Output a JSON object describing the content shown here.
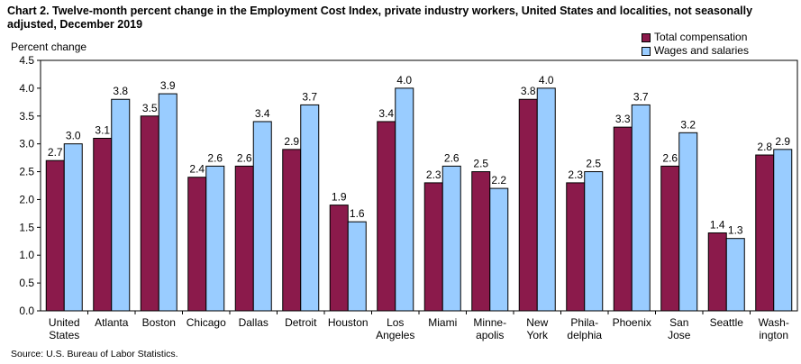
{
  "title": "Chart 2. Twelve-month percent change in the Employment Cost Index, private industry  workers, United States and localities, not seasonally adjusted, December 2019",
  "source": "Source: U.S. Bureau of Labor Statistics.",
  "colors": {
    "total": "#8B1A4B",
    "wages": "#99CCFF",
    "axis": "#000000"
  },
  "chart_data": {
    "type": "bar",
    "title": "Chart 2. Twelve-month percent change in the Employment Cost Index, private industry  workers, United States and localities, not seasonally adjusted, December 2019",
    "ylabel": "Percent change",
    "xlabel": "",
    "ylim": [
      0,
      4.5
    ],
    "yticks": [
      "0.0",
      "0.5",
      "1.0",
      "1.5",
      "2.0",
      "2.5",
      "3.0",
      "3.5",
      "4.0",
      "4.5"
    ],
    "legend_position": "top-right",
    "categories": [
      [
        "United",
        "States"
      ],
      [
        "Atlanta"
      ],
      [
        "Boston"
      ],
      [
        "Chicago"
      ],
      [
        "Dallas"
      ],
      [
        "Detroit"
      ],
      [
        "Houston"
      ],
      [
        "Los",
        "Angeles"
      ],
      [
        "Miami"
      ],
      [
        "Minne-",
        "apolis"
      ],
      [
        "New",
        "York"
      ],
      [
        "Phila-",
        "delphia"
      ],
      [
        "Phoenix"
      ],
      [
        "San",
        "Jose"
      ],
      [
        "Seattle"
      ],
      [
        "Wash-",
        "ington"
      ]
    ],
    "series": [
      {
        "name": "Total compensation",
        "values": [
          2.7,
          3.1,
          3.5,
          2.4,
          2.6,
          2.9,
          1.9,
          3.4,
          2.3,
          2.5,
          3.8,
          2.3,
          3.3,
          2.6,
          1.4,
          2.8
        ],
        "labels": [
          "2.7",
          "3.1",
          "3.5",
          "2.4",
          "2.6",
          "2.9",
          "1.9",
          "3.4",
          "2.3",
          "2.5",
          "3.8",
          "2.3",
          "3.3",
          "2.6",
          "1.4",
          "2.8"
        ]
      },
      {
        "name": "Wages and salaries",
        "values": [
          3.0,
          3.8,
          3.9,
          2.6,
          3.4,
          3.7,
          1.6,
          4.0,
          2.6,
          2.2,
          4.0,
          2.5,
          3.7,
          3.2,
          1.3,
          2.9
        ],
        "labels": [
          "3.0",
          "3.8",
          "3.9",
          "2.6",
          "3.4",
          "3.7",
          "1.6",
          "4.0",
          "2.6",
          "2.2",
          "4.0",
          "2.5",
          "3.7",
          "3.2",
          "1.3",
          "2.9"
        ]
      }
    ]
  }
}
